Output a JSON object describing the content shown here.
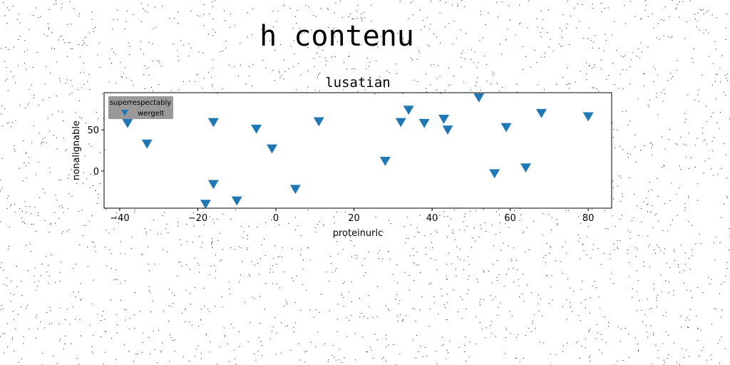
{
  "figure": {
    "suptitle": "h contenu"
  },
  "colors": {
    "marker": "#1f77b4",
    "legend_bg": "#999999",
    "noise": "#000000"
  },
  "chart_data": {
    "type": "scatter",
    "title": "lusatian",
    "xlabel": "proteinuric",
    "ylabel": "nonalignable",
    "xlim": [
      -44,
      86
    ],
    "ylim": [
      -45,
      95
    ],
    "xticks": [
      -40,
      -20,
      0,
      20,
      40,
      60,
      80
    ],
    "yticks": [
      0,
      50
    ],
    "grid": false,
    "legend": {
      "title": "superrespectably",
      "placement": "top-left"
    },
    "series": [
      {
        "name": "wergelt",
        "marker": "triangle-down",
        "color": "#1f77b4",
        "points": [
          {
            "x": -38,
            "y": 58
          },
          {
            "x": -33,
            "y": 33
          },
          {
            "x": -16,
            "y": 59
          },
          {
            "x": -16,
            "y": -16
          },
          {
            "x": -18,
            "y": -40
          },
          {
            "x": -10,
            "y": -36
          },
          {
            "x": -5,
            "y": 51
          },
          {
            "x": -1,
            "y": 27
          },
          {
            "x": 5,
            "y": -22
          },
          {
            "x": 11,
            "y": 60
          },
          {
            "x": 28,
            "y": 12
          },
          {
            "x": 32,
            "y": 59
          },
          {
            "x": 34,
            "y": 74
          },
          {
            "x": 38,
            "y": 58
          },
          {
            "x": 43,
            "y": 63
          },
          {
            "x": 44,
            "y": 50
          },
          {
            "x": 52,
            "y": 89
          },
          {
            "x": 56,
            "y": -3
          },
          {
            "x": 59,
            "y": 53
          },
          {
            "x": 64,
            "y": 4
          },
          {
            "x": 68,
            "y": 70
          },
          {
            "x": 80,
            "y": 66
          }
        ]
      }
    ]
  }
}
